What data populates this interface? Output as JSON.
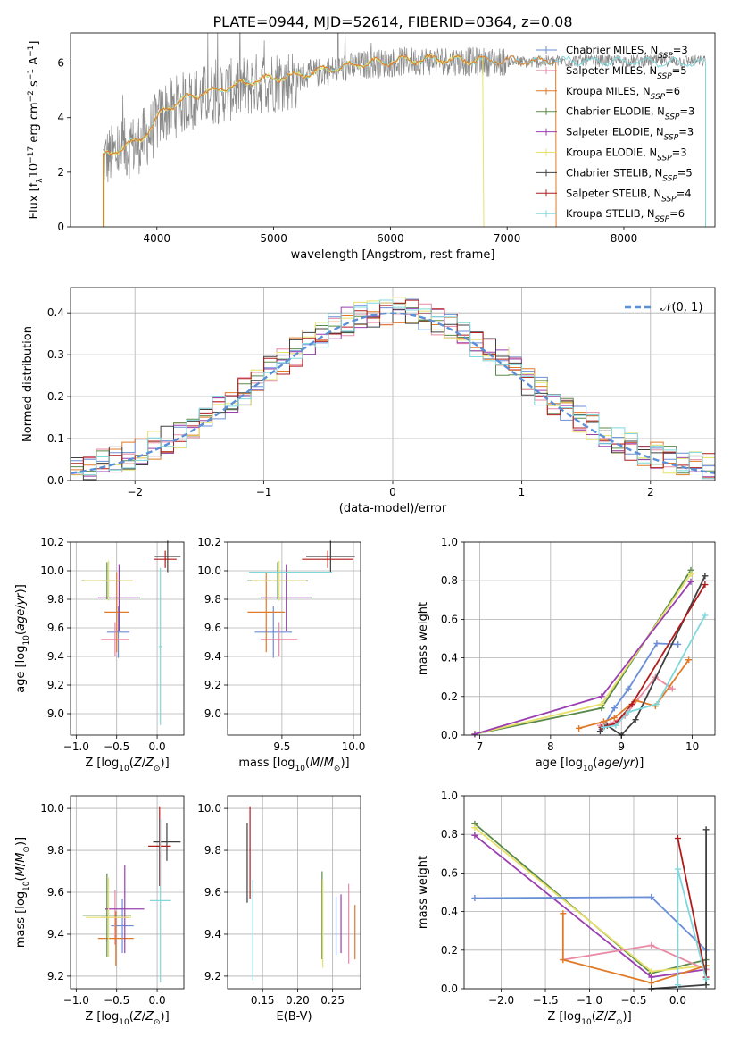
{
  "figure": {
    "title": "PLATE=0944, MJD=52614, FIBERID=0364, z=0.08"
  },
  "colors": {
    "Chabrier MILES": "#6a8fd6",
    "Salpeter MILES": "#e98aa4",
    "Kroupa MILES": "#e07a28",
    "Chabrier ELODIE": "#5a8a4a",
    "Salpeter ELODIE": "#9a3fb0",
    "Kroupa ELODIE": "#e8e06a",
    "Chabrier STELIB": "#404040",
    "Salpeter STELIB": "#b01c1c",
    "Kroupa STELIB": "#7fd8dc",
    "data": "#888888",
    "normal": "#5b8fd6"
  },
  "chart_data": [
    {
      "id": "spectrum",
      "type": "line",
      "title": "PLATE=0944, MJD=52614, FIBERID=0364, z=0.08",
      "xlabel": "wavelength [Angstrom, rest frame]",
      "ylabel": "Flux [f_λ 10^-17 erg cm^-2 s^-1 A^-1]",
      "xlim": [
        3260,
        8780
      ],
      "ylim": [
        0,
        7.1
      ],
      "xticks": [
        4000,
        5000,
        6000,
        7000,
        8000
      ],
      "yticks": [
        0,
        2,
        4,
        6
      ],
      "grid": false,
      "legend_position": "top-right",
      "legend": [
        {
          "label": "Chabrier MILES",
          "nssp": "N_SSP=3"
        },
        {
          "label": "Salpeter MILES",
          "nssp": "N_SSP=5"
        },
        {
          "label": "Kroupa MILES",
          "nssp": "N_SSP=6"
        },
        {
          "label": "Chabrier ELODIE",
          "nssp": "N_SSP=3"
        },
        {
          "label": "Salpeter ELODIE",
          "nssp": "N_SSP=3"
        },
        {
          "label": "Kroupa ELODIE",
          "nssp": "N_SSP=3"
        },
        {
          "label": "Chabrier STELIB",
          "nssp": "N_SSP=5"
        },
        {
          "label": "Salpeter STELIB",
          "nssp": "N_SSP=4"
        },
        {
          "label": "Kroupa STELIB",
          "nssp": "N_SSP=6"
        }
      ],
      "continuum_x": [
        3550,
        3700,
        3850,
        3950,
        4050,
        4300,
        4600,
        4900,
        5200,
        5500,
        5800,
        6100,
        6400,
        6700,
        7000,
        7200,
        7420
      ],
      "continuum_y": [
        2.6,
        2.9,
        3.2,
        3.6,
        4.3,
        4.8,
        5.1,
        5.4,
        5.55,
        5.8,
        6.0,
        6.1,
        6.15,
        6.1,
        6.1,
        6.05,
        6.1
      ],
      "model_ranges": [
        {
          "name": "Kroupa STELIB",
          "x": [
            3540,
            8700
          ]
        },
        {
          "name": "Kroupa ELODIE",
          "x": [
            3550,
            6800
          ]
        },
        {
          "name": "Kroupa MILES",
          "x": [
            3540,
            7420
          ]
        }
      ]
    },
    {
      "id": "residuals",
      "type": "histogram",
      "xlabel": "(data-model)/error",
      "ylabel": "Normed distribution",
      "xlim": [
        -2.5,
        2.5
      ],
      "ylim": [
        0,
        0.46
      ],
      "xticks": [
        -2,
        -1,
        0,
        1,
        2
      ],
      "yticks": [
        0.0,
        0.1,
        0.2,
        0.3,
        0.4
      ],
      "grid": true,
      "legend": [
        {
          "label": "𝒩(0, 1)"
        }
      ],
      "legend_position": "top-right",
      "bin_width": 0.1
    },
    {
      "id": "z-age",
      "type": "errorbar",
      "xlabel": "Z [log10(Z/Z☉)]",
      "ylabel": "age [log10(age/yr)]",
      "xlim": [
        -1.07,
        0.33
      ],
      "ylim": [
        8.85,
        10.2
      ],
      "xticks": [
        -1.0,
        -0.5,
        0.0
      ],
      "yticks": [
        9.0,
        9.2,
        9.4,
        9.6,
        9.8,
        10.0,
        10.2
      ],
      "grid": true,
      "points": [
        {
          "name": "Chabrier MILES",
          "x": -0.48,
          "xerr": 0.14,
          "y": 9.57,
          "yerr": 0.18
        },
        {
          "name": "Salpeter MILES",
          "x": -0.52,
          "xerr": 0.17,
          "y": 9.52,
          "yerr": 0.12
        },
        {
          "name": "Kroupa MILES",
          "x": -0.5,
          "xerr": 0.15,
          "y": 9.71,
          "yerr": 0.28
        },
        {
          "name": "Chabrier ELODIE",
          "x": -0.62,
          "xerr": 0.31,
          "y": 9.93,
          "yerr": 0.13
        },
        {
          "name": "Salpeter ELODIE",
          "x": -0.47,
          "xerr": 0.26,
          "y": 9.81,
          "yerr": 0.23
        },
        {
          "name": "Kroupa ELODIE",
          "x": -0.6,
          "xerr": 0.3,
          "y": 9.93,
          "yerr": 0.14
        },
        {
          "name": "Chabrier STELIB",
          "x": 0.13,
          "xerr": 0.16,
          "y": 10.1,
          "yerr": 0.11
        },
        {
          "name": "Salpeter STELIB",
          "x": 0.1,
          "xerr": 0.14,
          "y": 10.08,
          "yerr": 0.06
        },
        {
          "name": "Kroupa STELIB",
          "x": 0.04,
          "xerr": 0.02,
          "y": 9.47,
          "yerr": 0.55
        }
      ]
    },
    {
      "id": "mass-age",
      "type": "errorbar",
      "xlabel": "mass [log10(M/M☉)]",
      "ylabel": "",
      "xlim": [
        9.12,
        10.05
      ],
      "ylim": [
        8.85,
        10.2
      ],
      "xticks": [
        9.5,
        10.0
      ],
      "yticks": [
        9.0,
        9.2,
        9.4,
        9.6,
        9.8,
        10.0,
        10.2
      ],
      "grid": true,
      "points": [
        {
          "name": "Chabrier MILES",
          "x": 9.44,
          "xerr": 0.13,
          "y": 9.57,
          "yerr": 0.18
        },
        {
          "name": "Salpeter MILES",
          "x": 9.48,
          "xerr": 0.13,
          "y": 9.52,
          "yerr": 0.12
        },
        {
          "name": "Kroupa MILES",
          "x": 9.39,
          "xerr": 0.13,
          "y": 9.71,
          "yerr": 0.28
        },
        {
          "name": "Chabrier ELODIE",
          "x": 9.47,
          "xerr": 0.21,
          "y": 9.93,
          "yerr": 0.13
        },
        {
          "name": "Salpeter ELODIE",
          "x": 9.53,
          "xerr": 0.18,
          "y": 9.81,
          "yerr": 0.23
        },
        {
          "name": "Kroupa ELODIE",
          "x": 9.48,
          "xerr": 0.19,
          "y": 9.93,
          "yerr": 0.14
        },
        {
          "name": "Chabrier STELIB",
          "x": 9.84,
          "xerr": 0.17,
          "y": 10.1,
          "yerr": 0.11
        },
        {
          "name": "Salpeter STELIB",
          "x": 9.82,
          "xerr": 0.18,
          "y": 10.08,
          "yerr": 0.06
        },
        {
          "name": "Kroupa STELIB",
          "x": 9.56,
          "xerr": 0.29,
          "y": 9.99,
          "yerr": 0.0
        }
      ]
    },
    {
      "id": "age-weight",
      "type": "line",
      "xlabel": "age [log10(age/yr)]",
      "ylabel": "mass weight",
      "xlim": [
        6.78,
        10.32
      ],
      "ylim": [
        0,
        1.0
      ],
      "xticks": [
        7,
        8,
        9,
        10
      ],
      "yticks": [
        0.0,
        0.2,
        0.4,
        0.6,
        0.8,
        1.0
      ],
      "grid": true,
      "series": [
        {
          "name": "Chabrier ELODIE",
          "x": [
            6.93,
            8.72,
            9.98
          ],
          "y": [
            0.005,
            0.14,
            0.855
          ]
        },
        {
          "name": "Kroupa ELODIE",
          "x": [
            6.93,
            8.72,
            9.98
          ],
          "y": [
            0.005,
            0.16,
            0.835
          ]
        },
        {
          "name": "Salpeter ELODIE",
          "x": [
            6.93,
            8.72,
            9.98
          ],
          "y": [
            0.005,
            0.2,
            0.795
          ]
        },
        {
          "name": "Chabrier MILES",
          "x": [
            8.72,
            8.9,
            9.1,
            9.5,
            9.8
          ],
          "y": [
            0.03,
            0.14,
            0.24,
            0.475,
            0.47
          ]
        },
        {
          "name": "Salpeter MILES",
          "x": [
            8.7,
            8.85,
            9.05,
            9.48,
            9.72
          ],
          "y": [
            0.05,
            0.06,
            0.1,
            0.3,
            0.24
          ]
        },
        {
          "name": "Kroupa MILES",
          "x": [
            8.4,
            8.75,
            8.9,
            9.2,
            9.48,
            9.95
          ],
          "y": [
            0.035,
            0.07,
            0.09,
            0.18,
            0.15,
            0.39
          ]
        },
        {
          "name": "Chabrier STELIB",
          "x": [
            8.7,
            8.8,
            9.0,
            9.2,
            10.18
          ],
          "y": [
            0.02,
            0.05,
            0.0,
            0.08,
            0.825
          ]
        },
        {
          "name": "Salpeter STELIB",
          "x": [
            8.72,
            8.92,
            9.15,
            10.18
          ],
          "y": [
            0.04,
            0.06,
            0.16,
            0.78
          ]
        },
        {
          "name": "Kroupa STELIB",
          "x": [
            8.75,
            8.92,
            9.1,
            9.5,
            10.18
          ],
          "y": [
            0.04,
            0.05,
            0.12,
            0.16,
            0.62
          ]
        }
      ]
    },
    {
      "id": "z-mass",
      "type": "errorbar",
      "xlabel": "Z [log10(Z/Z☉)]",
      "ylabel": "mass [log10(M/M☉)]",
      "xlim": [
        -1.07,
        0.33
      ],
      "ylim": [
        9.14,
        10.06
      ],
      "xticks": [
        -1.0,
        -0.5,
        0.0
      ],
      "yticks": [
        9.2,
        9.4,
        9.6,
        9.8,
        10.0
      ],
      "grid": true,
      "points": [
        {
          "name": "Chabrier MILES",
          "x": -0.43,
          "xerr": 0.14,
          "y": 9.44,
          "yerr": 0.13
        },
        {
          "name": "Salpeter MILES",
          "x": -0.52,
          "xerr": 0.17,
          "y": 9.48,
          "yerr": 0.13
        },
        {
          "name": "Kroupa MILES",
          "x": -0.51,
          "xerr": 0.22,
          "y": 9.38,
          "yerr": 0.13
        },
        {
          "name": "Chabrier ELODIE",
          "x": -0.62,
          "xerr": 0.3,
          "y": 9.49,
          "yerr": 0.2
        },
        {
          "name": "Salpeter ELODIE",
          "x": -0.4,
          "xerr": 0.24,
          "y": 9.52,
          "yerr": 0.21
        },
        {
          "name": "Kroupa ELODIE",
          "x": -0.6,
          "xerr": 0.28,
          "y": 9.48,
          "yerr": 0.19
        },
        {
          "name": "Chabrier STELIB",
          "x": 0.12,
          "xerr": 0.17,
          "y": 9.84,
          "yerr": 0.09
        },
        {
          "name": "Salpeter STELIB",
          "x": 0.03,
          "xerr": 0.14,
          "y": 9.82,
          "yerr": 0.19
        },
        {
          "name": "Kroupa STELIB",
          "x": 0.04,
          "xerr": 0.13,
          "y": 9.56,
          "yerr": 0.39
        }
      ]
    },
    {
      "id": "ebv-mass",
      "type": "errorbar",
      "xlabel": "E(B-V)",
      "ylabel": "",
      "xlim": [
        0.1,
        0.29
      ],
      "ylim": [
        9.14,
        10.06
      ],
      "xticks": [
        0.15,
        0.2,
        0.25
      ],
      "yticks": [
        9.2,
        9.4,
        9.6,
        9.8,
        10.0
      ],
      "grid": true,
      "points": [
        {
          "name": "Chabrier STELIB",
          "x": 0.128,
          "y": 9.74,
          "yerr": 0.19
        },
        {
          "name": "Salpeter STELIB",
          "x": 0.132,
          "y": 9.79,
          "yerr": 0.22
        },
        {
          "name": "Kroupa STELIB",
          "x": 0.136,
          "y": 9.42,
          "yerr": 0.24
        },
        {
          "name": "Chabrier ELODIE",
          "x": 0.235,
          "y": 9.49,
          "yerr": 0.21
        },
        {
          "name": "Kroupa ELODIE",
          "x": 0.236,
          "y": 9.45,
          "yerr": 0.21
        },
        {
          "name": "Chabrier MILES",
          "x": 0.255,
          "y": 9.44,
          "yerr": 0.14
        },
        {
          "name": "Salpeter ELODIE",
          "x": 0.262,
          "y": 9.45,
          "yerr": 0.14
        },
        {
          "name": "Salpeter MILES",
          "x": 0.273,
          "y": 9.45,
          "yerr": 0.19
        },
        {
          "name": "Kroupa MILES",
          "x": 0.282,
          "y": 9.41,
          "yerr": 0.13
        }
      ]
    },
    {
      "id": "z-weight",
      "type": "line",
      "xlabel": "Z [log10(Z/Z☉)]",
      "ylabel": "mass weight",
      "xlim": [
        -2.42,
        0.42
      ],
      "ylim": [
        0,
        1.0
      ],
      "xticks": [
        -2.0,
        -1.5,
        -1.0,
        -0.5,
        0.0
      ],
      "yticks": [
        0.0,
        0.2,
        0.4,
        0.6,
        0.8,
        1.0
      ],
      "grid": true,
      "series": [
        {
          "name": "Chabrier ELODIE",
          "x": [
            -2.3,
            -0.3,
            0.32
          ],
          "y": [
            0.855,
            0.08,
            0.15
          ]
        },
        {
          "name": "Kroupa ELODIE",
          "x": [
            -2.3,
            -0.3,
            0.32
          ],
          "y": [
            0.835,
            0.09,
            0.12
          ]
        },
        {
          "name": "Salpeter ELODIE",
          "x": [
            -2.3,
            -0.3,
            0.32
          ],
          "y": [
            0.795,
            0.06,
            0.1
          ]
        },
        {
          "name": "Chabrier MILES",
          "x": [
            -2.3,
            -0.3,
            0.32
          ],
          "y": [
            0.47,
            0.475,
            0.2
          ]
        },
        {
          "name": "Salpeter MILES",
          "x": [
            -1.3,
            -0.3,
            0.32
          ],
          "y": [
            0.15,
            0.225,
            0.1
          ]
        },
        {
          "name": "Kroupa MILES",
          "x": [
            -1.3,
            -1.3,
            -0.3,
            0.32
          ],
          "y": [
            0.39,
            0.15,
            0.03,
            0.12
          ]
        },
        {
          "name": "Chabrier STELIB",
          "x": [
            -0.3,
            0.32,
            0.32
          ],
          "y": [
            0.0,
            0.02,
            0.825
          ]
        },
        {
          "name": "Salpeter STELIB",
          "x": [
            0.0,
            0.32
          ],
          "y": [
            0.78,
            0.06
          ]
        },
        {
          "name": "Kroupa STELIB",
          "x": [
            0.0,
            0.0,
            0.32
          ],
          "y": [
            0.02,
            0.62,
            0.05
          ]
        }
      ]
    }
  ]
}
